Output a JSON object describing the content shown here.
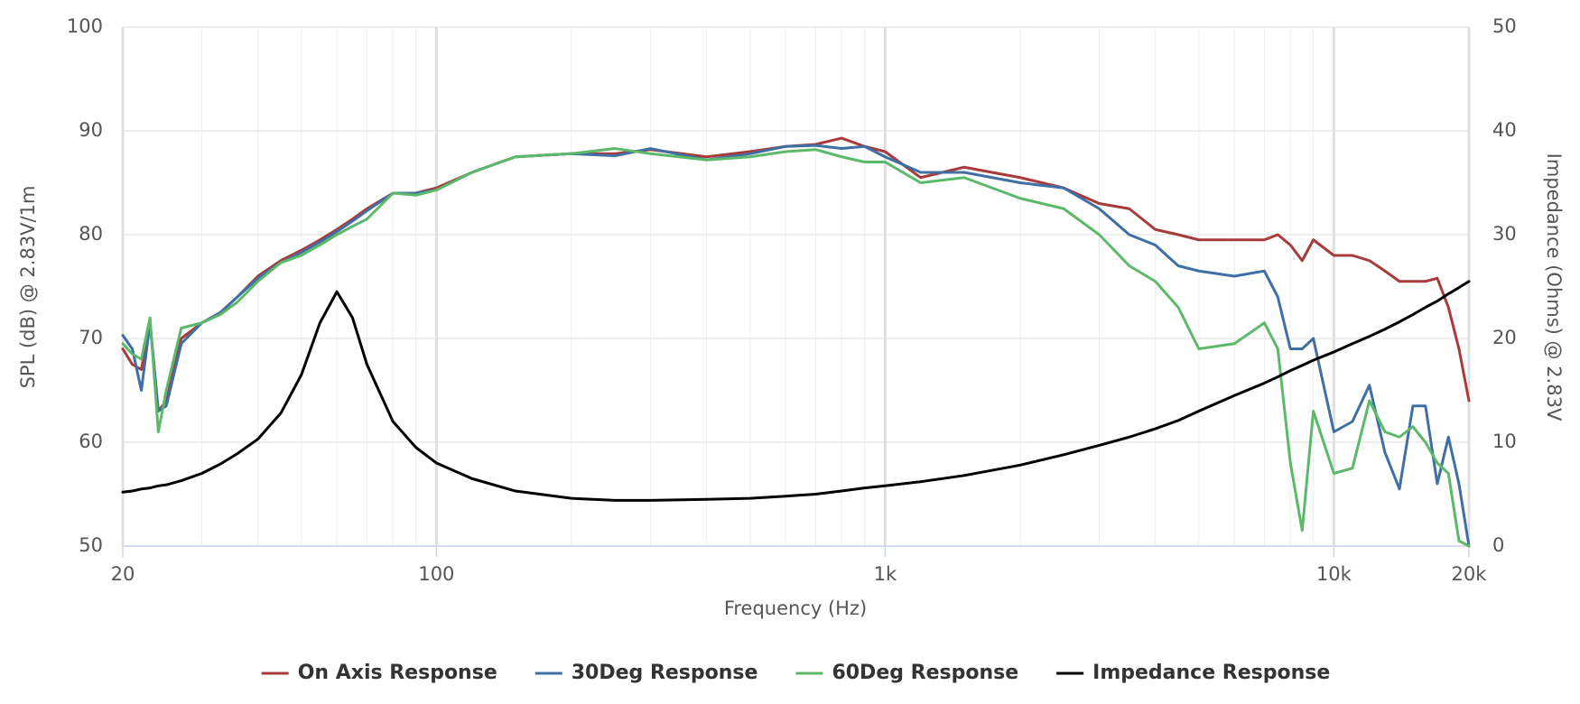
{
  "chart_data": {
    "type": "line",
    "x_label": "Frequency (Hz)",
    "y_label": "SPL (dB) @ 2.83V/1m",
    "y2_label": "Impedance (Ohms) @ 2.83V",
    "xscale": "log",
    "grid": true,
    "legend": "bottom",
    "xlim": [
      20,
      20000
    ],
    "xticks": [
      20,
      100,
      {
        "value": 1000,
        "label": "1k"
      },
      {
        "value": 10000,
        "label": "10k"
      },
      {
        "value": 20000,
        "label": "20k"
      }
    ],
    "xminorticks": [
      30,
      40,
      50,
      60,
      70,
      80,
      90,
      200,
      300,
      400,
      500,
      600,
      700,
      800,
      900,
      2000,
      3000,
      4000,
      5000,
      6000,
      7000,
      8000,
      9000
    ],
    "ylim": [
      50,
      100
    ],
    "yticks": [
      50,
      60,
      70,
      80,
      90,
      100
    ],
    "y2lim": [
      0,
      50
    ],
    "y2ticks": [
      0,
      10,
      20,
      30,
      40,
      50
    ],
    "x": [
      20,
      21,
      22,
      23,
      24,
      25,
      27,
      30,
      33,
      36,
      40,
      45,
      50,
      55,
      60,
      65,
      70,
      80,
      90,
      100,
      120,
      150,
      200,
      250,
      300,
      400,
      500,
      600,
      700,
      800,
      900,
      1000,
      1200,
      1500,
      2000,
      2500,
      3000,
      3500,
      4000,
      4500,
      5000,
      6000,
      7000,
      7500,
      8000,
      8500,
      9000,
      10000,
      11000,
      12000,
      13000,
      14000,
      15000,
      16000,
      17000,
      18000,
      19000,
      20000
    ],
    "series": [
      {
        "name": "On Axis Response",
        "color": "#a83a3a",
        "values": [
          69,
          67.5,
          67,
          71.5,
          63,
          64,
          70,
          71.5,
          72.5,
          74,
          76,
          77.5,
          78.5,
          79.5,
          80.5,
          81.5,
          82.5,
          84,
          84,
          84.5,
          86,
          87.5,
          87.8,
          87.8,
          88.2,
          87.5,
          88,
          88.5,
          88.7,
          89.3,
          88.5,
          88,
          85.5,
          86.5,
          85.5,
          84.5,
          83,
          82.5,
          80.5,
          80,
          79.5,
          79.5,
          79.5,
          80,
          79,
          77.5,
          79.5,
          78,
          78,
          77.5,
          76.5,
          75.5,
          75.5,
          75.5,
          75.8,
          73,
          69,
          64
        ]
      },
      {
        "name": "30Deg Response",
        "color": "#3f6fa5",
        "values": [
          70.3,
          69,
          65,
          71.5,
          63,
          63.5,
          69.5,
          71.5,
          72.5,
          74,
          75.8,
          77.3,
          78.3,
          79.3,
          80.3,
          81.3,
          82.3,
          84,
          84,
          84.3,
          86,
          87.5,
          87.8,
          87.6,
          88.3,
          87.2,
          87.8,
          88.5,
          88.6,
          88.3,
          88.5,
          87.5,
          86,
          86,
          85,
          84.5,
          82.5,
          80,
          79,
          77,
          76.5,
          76,
          76.5,
          74,
          69,
          69,
          70,
          61,
          62,
          65.5,
          59,
          55.5,
          63.5,
          63.5,
          56,
          60.5,
          56,
          50
        ]
      },
      {
        "name": "60Deg Response",
        "color": "#5cb96a",
        "values": [
          69.5,
          68.5,
          68,
          72,
          61,
          65,
          71,
          71.5,
          72.3,
          73.5,
          75.5,
          77.3,
          78,
          79,
          80,
          80.8,
          81.5,
          84,
          83.8,
          84.3,
          86,
          87.5,
          87.8,
          88.3,
          87.8,
          87.2,
          87.5,
          88,
          88.2,
          87.5,
          87,
          87,
          85,
          85.5,
          83.5,
          82.5,
          80,
          77,
          75.5,
          73,
          69,
          69.5,
          71.5,
          69,
          58,
          51.5,
          63,
          57,
          57.5,
          64,
          61,
          60.5,
          61.5,
          60,
          58,
          57,
          50.5,
          50
        ]
      },
      {
        "name": "Impedance Response",
        "color": "#000000",
        "axis": "y2",
        "values": [
          5.2,
          5.3,
          5.5,
          5.6,
          5.8,
          5.9,
          6.3,
          7,
          7.9,
          8.9,
          10.3,
          12.8,
          16.5,
          21.5,
          24.5,
          22,
          17.5,
          12,
          9.5,
          8,
          6.5,
          5.3,
          4.6,
          4.4,
          4.4,
          4.5,
          4.6,
          4.8,
          5,
          5.3,
          5.6,
          5.8,
          6.2,
          6.8,
          7.8,
          8.8,
          9.7,
          10.5,
          11.3,
          12.1,
          13,
          14.5,
          15.7,
          16.3,
          16.9,
          17.4,
          17.9,
          18.7,
          19.5,
          20.2,
          20.9,
          21.6,
          22.3,
          23,
          23.6,
          24.3,
          24.9,
          25.5
        ]
      }
    ]
  }
}
